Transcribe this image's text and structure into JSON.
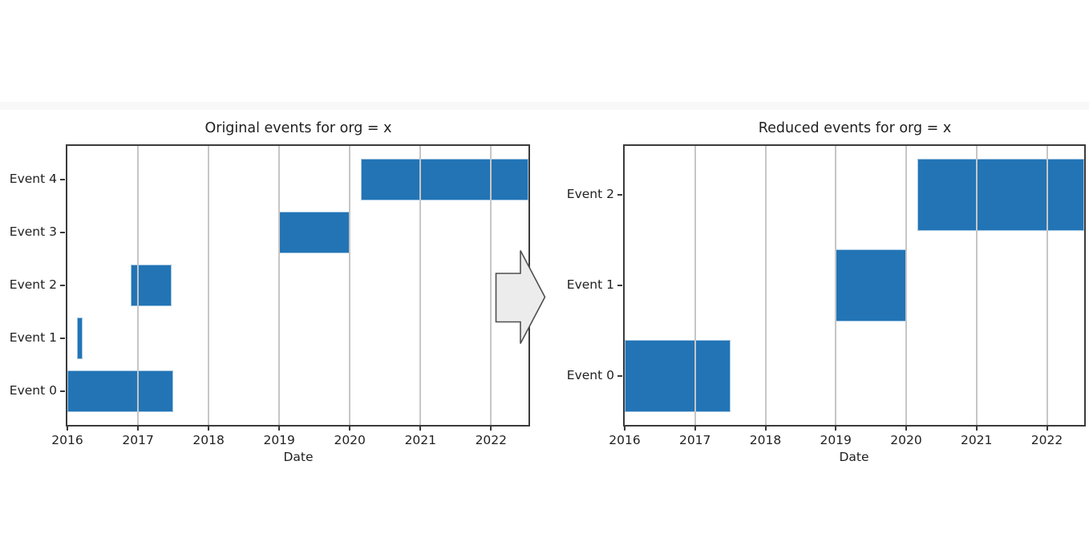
{
  "figure": {
    "background": "#ffffff",
    "description": "Two horizontal event-timeline (gantt) charts linked by a right-pointing block arrow"
  },
  "style": {
    "bar_color": "#2274b5",
    "grid_color": "#c6c6c6",
    "spine_color": "#3b3b3b",
    "text_color": "#222222",
    "tick_color": "#3b3b3b"
  },
  "arrow": {
    "icon": "right-arrow-icon",
    "fill": "#ececec",
    "stroke": "#4f4f4f"
  },
  "chart_data": [
    {
      "type": "bar",
      "subtype": "gantt-horizontal",
      "title": "Original events for org = x",
      "xlabel": "Date",
      "ylabel": "",
      "x_ticks": [
        2016,
        2017,
        2018,
        2019,
        2020,
        2021,
        2022
      ],
      "x_tick_labels": [
        "2016",
        "2017",
        "2018",
        "2019",
        "2020",
        "2021",
        "2022"
      ],
      "xlim": [
        2016.0,
        2022.53
      ],
      "grid": true,
      "legend": "none",
      "bars": [
        {
          "label": "Event 0",
          "start": 2016.0,
          "end": 2017.5
        },
        {
          "label": "Event 1",
          "start": 2016.14,
          "end": 2016.22
        },
        {
          "label": "Event 2",
          "start": 2016.9,
          "end": 2017.48
        },
        {
          "label": "Event 3",
          "start": 2019.0,
          "end": 2020.0
        },
        {
          "label": "Event 4",
          "start": 2020.16,
          "end": 2022.53
        }
      ]
    },
    {
      "type": "bar",
      "subtype": "gantt-horizontal",
      "title": "Reduced events for org = x",
      "xlabel": "Date",
      "ylabel": "",
      "x_ticks": [
        2016,
        2017,
        2018,
        2019,
        2020,
        2021,
        2022
      ],
      "x_tick_labels": [
        "2016",
        "2017",
        "2018",
        "2019",
        "2020",
        "2021",
        "2022"
      ],
      "xlim": [
        2016.0,
        2022.53
      ],
      "grid": true,
      "legend": "none",
      "bars": [
        {
          "label": "Event 0",
          "start": 2016.0,
          "end": 2017.5
        },
        {
          "label": "Event 1",
          "start": 2019.0,
          "end": 2020.0
        },
        {
          "label": "Event 2",
          "start": 2020.16,
          "end": 2022.53
        }
      ]
    }
  ]
}
